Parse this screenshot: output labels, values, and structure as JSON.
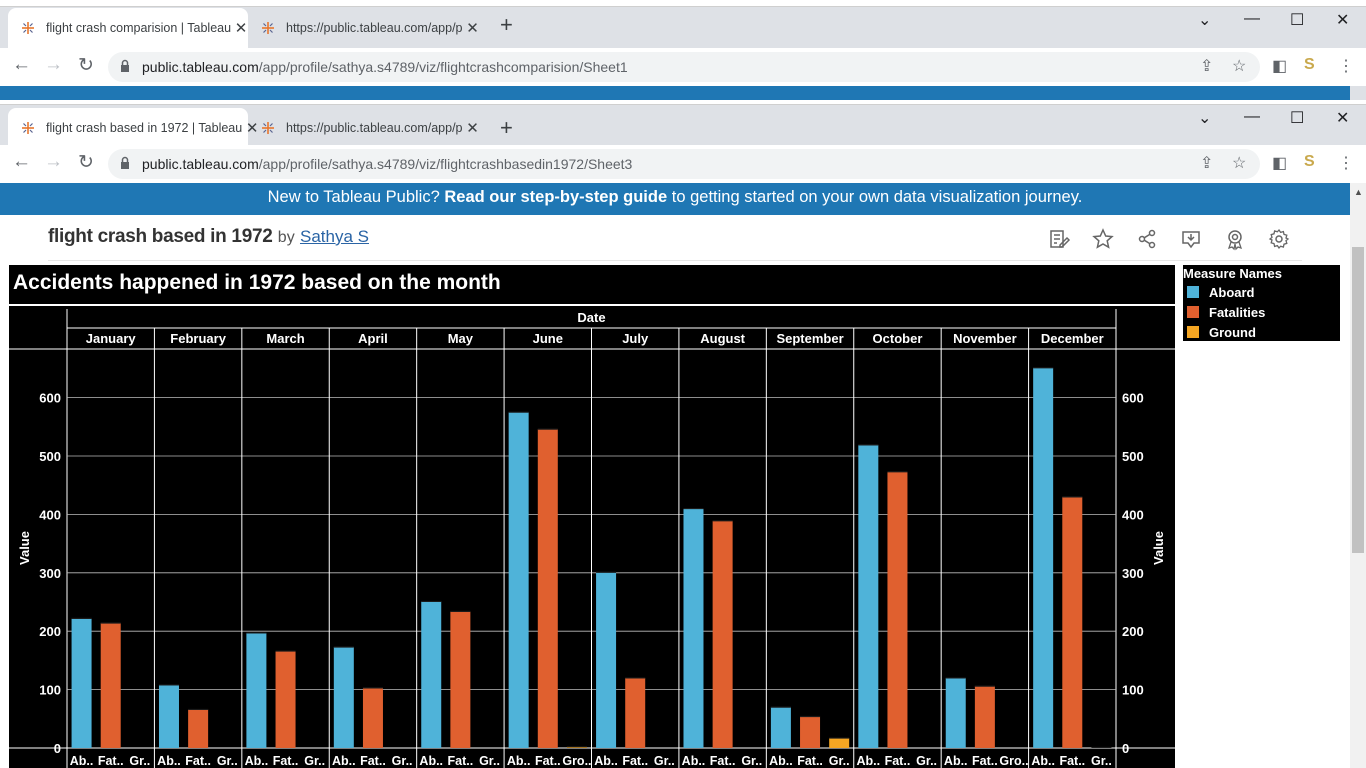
{
  "back_window": {
    "tabs": [
      {
        "title": "flight crash comparision | Tableau"
      },
      {
        "title": "https://public.tableau.com/app/p"
      }
    ],
    "url_host": "public.tableau.com",
    "url_path": "/app/profile/sathya.s4789/viz/flightcrashcomparision/Sheet1"
  },
  "front_window": {
    "tabs": [
      {
        "title": "flight crash based in 1972 | Tableau"
      },
      {
        "title": "https://public.tableau.com/app/p"
      }
    ],
    "url_host": "public.tableau.com",
    "url_path": "/app/profile/sathya.s4789/viz/flightcrashbasedin1972/Sheet3"
  },
  "banner": {
    "pre": "New to Tableau Public? ",
    "bold": "Read our step-by-step guide",
    "post": " to getting started on your own data visualization journey."
  },
  "viz": {
    "name": "flight crash based in 1972",
    "by": "by",
    "author": "Sathya S"
  },
  "chart_data": {
    "type": "bar",
    "title": "Accidents happened in 1972 based on the month",
    "column_header": "Date",
    "ylabel": "Value",
    "ylim": [
      0,
      680
    ],
    "yticks": [
      "0",
      "100",
      "200",
      "300",
      "400",
      "500",
      "600"
    ],
    "grid": true,
    "legend_title": "Measure Names",
    "legend_position": "right",
    "categories": [
      "January",
      "February",
      "March",
      "April",
      "May",
      "June",
      "July",
      "August",
      "September",
      "October",
      "November",
      "December"
    ],
    "sub_labels": [
      [
        "Ab..",
        "Fat..",
        "Gr.."
      ],
      [
        "Ab..",
        "Fat..",
        "Gr.."
      ],
      [
        "Ab..",
        "Fat..",
        "Gr.."
      ],
      [
        "Ab..",
        "Fat..",
        "Gr.."
      ],
      [
        "Ab..",
        "Fat..",
        "Gr.."
      ],
      [
        "Ab..",
        "Fat..",
        "Gro.."
      ],
      [
        "Ab..",
        "Fat..",
        "Gr.."
      ],
      [
        "Ab..",
        "Fat..",
        "Gr.."
      ],
      [
        "Ab..",
        "Fat..",
        "Gr.."
      ],
      [
        "Ab..",
        "Fat..",
        "Gr.."
      ],
      [
        "Ab..",
        "Fat..",
        "Gro.."
      ],
      [
        "Ab..",
        "Fat..",
        "Gr.."
      ]
    ],
    "series": [
      {
        "name": "Aboard",
        "color": "#4fb3d9",
        "values": [
          222,
          108,
          197,
          173,
          251,
          575,
          301,
          410,
          70,
          519,
          120,
          651
        ]
      },
      {
        "name": "Fatalities",
        "color": "#e0602f",
        "values": [
          214,
          66,
          166,
          103,
          234,
          546,
          120,
          389,
          54,
          473,
          106,
          430
        ]
      },
      {
        "name": "Ground",
        "color": "#f5a623",
        "values": [
          0,
          0,
          0,
          0,
          0,
          2,
          0,
          0,
          17,
          0,
          0,
          1
        ]
      }
    ]
  }
}
